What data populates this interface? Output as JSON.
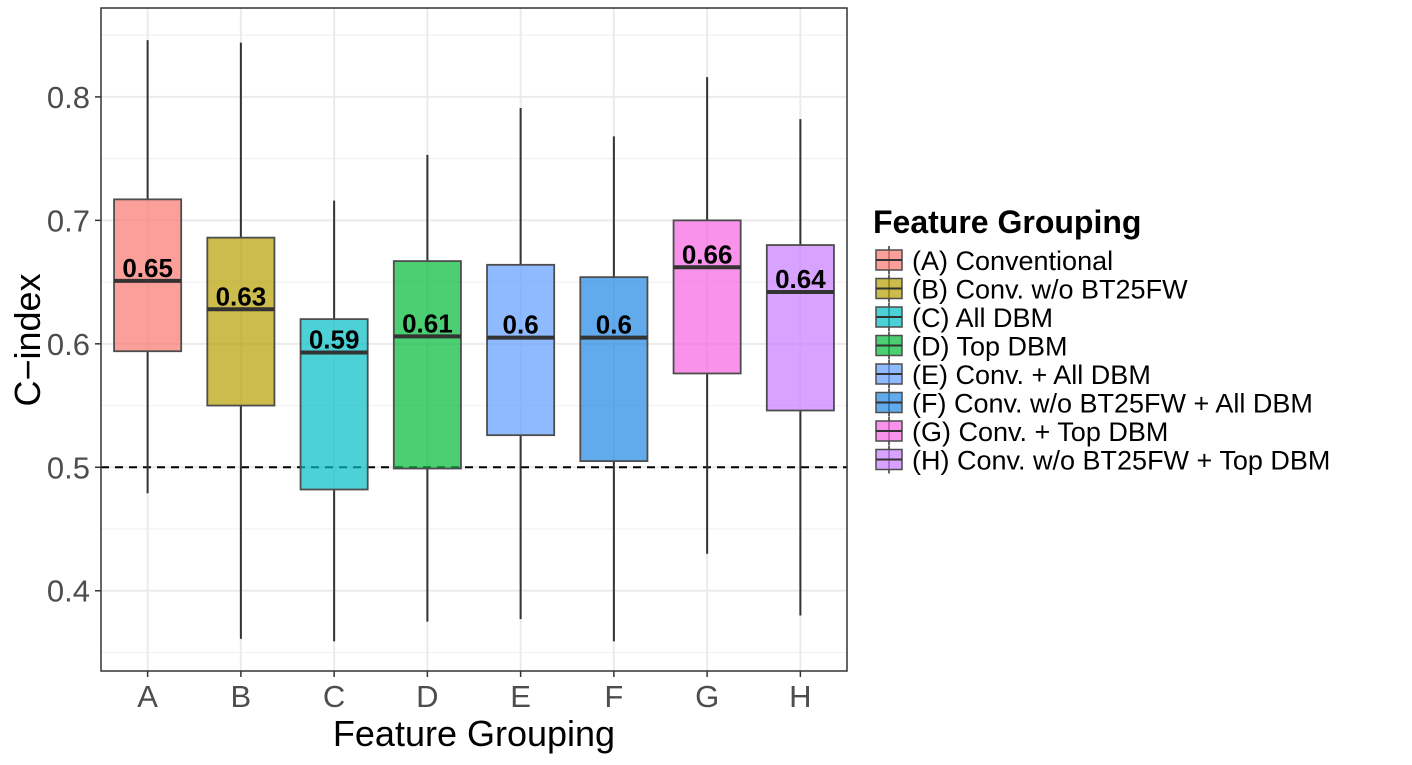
{
  "chart_data": {
    "type": "box",
    "title": "",
    "xlabel": "Feature Grouping",
    "ylabel": "C−index",
    "ylim": [
      0.335,
      0.872
    ],
    "yticks": [
      "0.4",
      "0.5",
      "0.6",
      "0.7",
      "0.8"
    ],
    "reference_line": {
      "y": 0.5,
      "style": "dashed",
      "color": "#000000"
    },
    "grid": true,
    "legend": {
      "title": "Feature Grouping",
      "position": "right",
      "entries": [
        "(A) Conventional",
        "(B) Conv. w/o BT25FW",
        "(C) All DBM",
        "(D) Top DBM",
        "(E) Conv. + All DBM",
        "(F) Conv. w/o BT25FW + All DBM",
        "(G) Conv. + Top DBM",
        "(H) Conv. w/o BT25FW + Top DBM"
      ]
    },
    "boxes": [
      {
        "category": "A",
        "min": 0.479,
        "q1": 0.594,
        "median": 0.651,
        "q3": 0.717,
        "max": 0.846,
        "label": "0.65",
        "color": "#F8766D"
      },
      {
        "category": "B",
        "min": 0.361,
        "q1": 0.55,
        "median": 0.628,
        "q3": 0.686,
        "max": 0.844,
        "label": "0.63",
        "color": "#B79F00"
      },
      {
        "category": "C",
        "min": 0.359,
        "q1": 0.482,
        "median": 0.593,
        "q3": 0.62,
        "max": 0.716,
        "label": "0.59",
        "color": "#00BFC4"
      },
      {
        "category": "D",
        "min": 0.375,
        "q1": 0.499,
        "median": 0.606,
        "q3": 0.667,
        "max": 0.753,
        "label": "0.61",
        "color": "#00BA38"
      },
      {
        "category": "E",
        "min": 0.377,
        "q1": 0.526,
        "median": 0.605,
        "q3": 0.664,
        "max": 0.791,
        "label": "0.6",
        "color": "#619CFF"
      },
      {
        "category": "F",
        "min": 0.359,
        "q1": 0.505,
        "median": 0.605,
        "q3": 0.654,
        "max": 0.768,
        "label": "0.6",
        "color": "#1E88E5"
      },
      {
        "category": "G",
        "min": 0.43,
        "q1": 0.576,
        "median": 0.662,
        "q3": 0.7,
        "max": 0.816,
        "label": "0.66",
        "color": "#F564E3"
      },
      {
        "category": "H",
        "min": 0.38,
        "q1": 0.546,
        "median": 0.642,
        "q3": 0.68,
        "max": 0.782,
        "label": "0.64",
        "color": "#C77CFF"
      }
    ]
  }
}
